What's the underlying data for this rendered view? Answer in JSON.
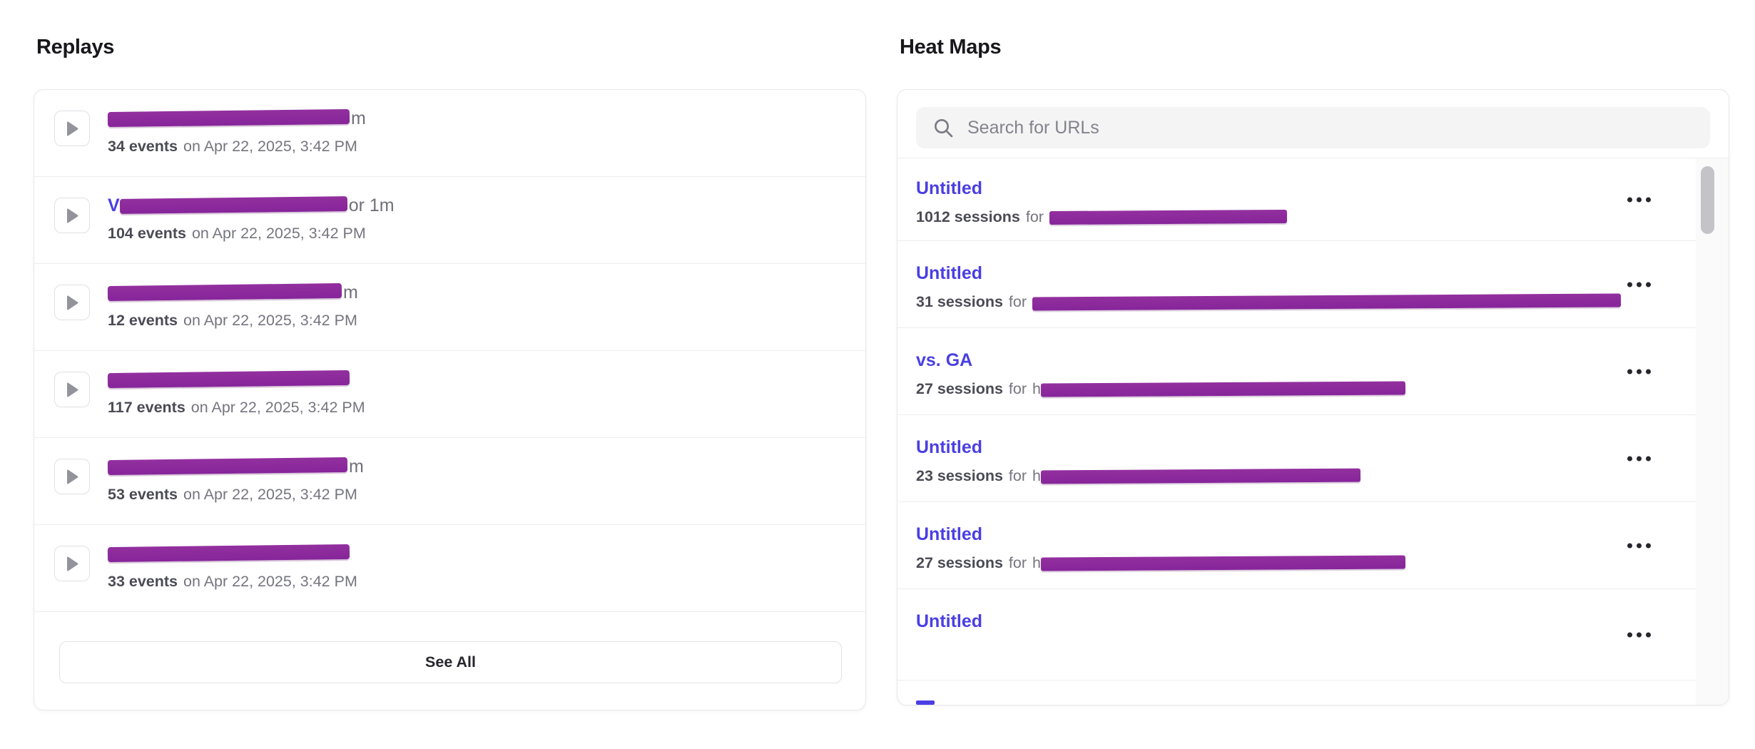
{
  "colors": {
    "accent_link": "#4a3fe3",
    "redaction_purple": "#8e2a9e",
    "text_dark": "#17171c",
    "text_gray": "#75757f"
  },
  "replays": {
    "title": "Replays",
    "see_all_label": "See All",
    "items": [
      {
        "visible_name_prefix": "",
        "visible_title_suffix": "m",
        "redaction_bar_width": 339,
        "events_label": "34 events",
        "date_text": "on Apr 22, 2025, 3:42 PM"
      },
      {
        "visible_name_prefix": "V",
        "visible_title_suffix": "or 1m",
        "redaction_bar_width": 319,
        "events_label": "104 events",
        "date_text": "on Apr 22, 2025, 3:42 PM"
      },
      {
        "visible_name_prefix": "",
        "visible_title_suffix": "m",
        "redaction_bar_width": 328,
        "events_label": "12 events",
        "date_text": "on Apr 22, 2025, 3:42 PM"
      },
      {
        "visible_name_prefix": "",
        "visible_title_suffix": "",
        "redaction_bar_width": 339,
        "events_label": "117 events",
        "date_text": "on Apr 22, 2025, 3:42 PM"
      },
      {
        "visible_name_prefix": "",
        "visible_title_suffix": "m",
        "redaction_bar_width": 336,
        "events_label": "53 events",
        "date_text": "on Apr 22, 2025, 3:42 PM"
      },
      {
        "visible_name_prefix": "",
        "visible_title_suffix": "",
        "redaction_bar_width": 339,
        "events_label": "33 events",
        "date_text": "on Apr 22, 2025, 3:42 PM"
      }
    ]
  },
  "heatmaps": {
    "title": "Heat Maps",
    "search_placeholder": "Search for URLs",
    "for_label": "for",
    "items": [
      {
        "title": "Untitled",
        "sessions_label": "1012 sessions",
        "visible_url_prefix": "",
        "redaction_bar_width": 333
      },
      {
        "title": "Untitled",
        "sessions_label": "31 sessions",
        "visible_url_prefix": "",
        "redaction_bar_width": 825
      },
      {
        "title": "vs. GA",
        "sessions_label": "27 sessions",
        "visible_url_prefix": "h",
        "redaction_bar_width": 511
      },
      {
        "title": "Untitled",
        "sessions_label": "23 sessions",
        "visible_url_prefix": "h",
        "redaction_bar_width": 448
      },
      {
        "title": "Untitled",
        "sessions_label": "27 sessions",
        "visible_url_prefix": "h",
        "redaction_bar_width": 511
      },
      {
        "title": "Untitled",
        "sessions_label": "",
        "visible_url_prefix": "",
        "redaction_bar_width": 0
      }
    ],
    "partial_next_row_visible": true
  }
}
